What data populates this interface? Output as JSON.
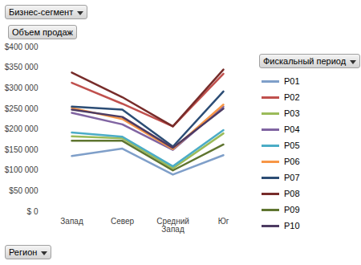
{
  "chart_data": {
    "type": "line",
    "title": "Объем продаж",
    "x_label": "Регион",
    "legend_title": "Фискальный период",
    "annotations": [
      "Бизнес-сегмент"
    ],
    "categories": [
      "Запад",
      "Север",
      "Средний Запад",
      "Юг"
    ],
    "series": [
      {
        "name": "P01",
        "color": "#7f9fc9",
        "values": [
          135000,
          153000,
          90000,
          137000
        ]
      },
      {
        "name": "P02",
        "color": "#c0504d",
        "values": [
          313000,
          262000,
          207000,
          335000
        ]
      },
      {
        "name": "P03",
        "color": "#9bbb59",
        "values": [
          183000,
          178000,
          105000,
          190000
        ]
      },
      {
        "name": "P04",
        "color": "#8064a2",
        "values": [
          240000,
          212000,
          150000,
          255000
        ]
      },
      {
        "name": "P05",
        "color": "#4bacc6",
        "values": [
          192000,
          182000,
          110000,
          198000
        ]
      },
      {
        "name": "P06",
        "color": "#f79646",
        "values": [
          252000,
          225000,
          152000,
          260000
        ]
      },
      {
        "name": "P07",
        "color": "#2c4d75",
        "values": [
          255000,
          248000,
          158000,
          292000
        ]
      },
      {
        "name": "P08",
        "color": "#772c2a",
        "values": [
          338000,
          278000,
          207000,
          345000
        ]
      },
      {
        "name": "P09",
        "color": "#5f7530",
        "values": [
          172000,
          172000,
          100000,
          163000
        ]
      },
      {
        "name": "P10",
        "color": "#4d3b62",
        "values": [
          248000,
          230000,
          155000,
          250000
        ]
      }
    ],
    "ylim": [
      0,
      400000
    ],
    "yticks": [
      {
        "value": 0,
        "label": "$ 0"
      },
      {
        "value": 50000,
        "label": "$50 000"
      },
      {
        "value": 100000,
        "label": "$100 000"
      },
      {
        "value": 150000,
        "label": "$150 000"
      },
      {
        "value": 200000,
        "label": "$200 000"
      },
      {
        "value": 250000,
        "label": "$250 000"
      },
      {
        "value": 300000,
        "label": "$300 000"
      },
      {
        "value": 350000,
        "label": "$350 000"
      },
      {
        "value": 400000,
        "label": "$400 000"
      }
    ],
    "grid": false,
    "legend": "right",
    "marker": "none"
  }
}
